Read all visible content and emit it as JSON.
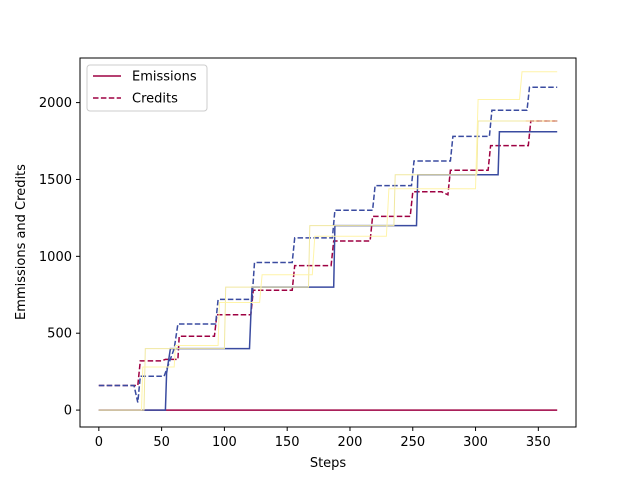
{
  "chart_data": {
    "type": "line",
    "xlabel": "Steps",
    "ylabel": "Emmissions and Credits",
    "xlim": [
      -15,
      380
    ],
    "ylim": [
      -110,
      2290
    ],
    "xticks": [
      0,
      50,
      100,
      150,
      200,
      250,
      300,
      350
    ],
    "yticks": [
      0,
      500,
      1000,
      1500,
      2000
    ],
    "grid": false,
    "legend_position": "top-left",
    "legend": [
      {
        "label": "Emissions",
        "style": "solid",
        "color": "#9e0142"
      },
      {
        "label": "Credits",
        "style": "dashed",
        "color": "#9e0142"
      }
    ],
    "series": [
      {
        "name": "Emissions",
        "color": "#9e0142",
        "style": "solid",
        "width": 1.5,
        "points": [
          [
            0,
            0
          ],
          [
            365,
            0
          ]
        ]
      },
      {
        "color": "#9e0142",
        "style": "dashed",
        "width": 1.5,
        "points": [
          [
            0,
            160
          ],
          [
            31,
            160
          ],
          [
            33,
            320
          ],
          [
            50,
            320
          ],
          [
            53,
            330
          ],
          [
            63,
            330
          ],
          [
            64,
            480
          ],
          [
            92,
            480
          ],
          [
            94,
            620
          ],
          [
            121,
            620
          ],
          [
            123,
            780
          ],
          [
            154,
            780
          ],
          [
            156,
            940
          ],
          [
            185,
            940
          ],
          [
            187,
            1100
          ],
          [
            216,
            1100
          ],
          [
            218,
            1260
          ],
          [
            248,
            1260
          ],
          [
            250,
            1420
          ],
          [
            273,
            1420
          ],
          [
            278,
            1400
          ],
          [
            280,
            1560
          ],
          [
            310,
            1560
          ],
          [
            312,
            1720
          ],
          [
            342,
            1720
          ],
          [
            344,
            1880
          ],
          [
            365,
            1880
          ]
        ]
      },
      {
        "color": "#3a4ba0",
        "style": "dashed",
        "width": 1.5,
        "points": [
          [
            0,
            160
          ],
          [
            28,
            160
          ],
          [
            31,
            50
          ],
          [
            33,
            220
          ],
          [
            52,
            220
          ],
          [
            60,
            400
          ],
          [
            63,
            560
          ],
          [
            93,
            560
          ],
          [
            95,
            720
          ],
          [
            122,
            720
          ],
          [
            124,
            960
          ],
          [
            154,
            960
          ],
          [
            156,
            1120
          ],
          [
            186,
            1120
          ],
          [
            188,
            1300
          ],
          [
            218,
            1300
          ],
          [
            220,
            1460
          ],
          [
            249,
            1460
          ],
          [
            251,
            1620
          ],
          [
            280,
            1620
          ],
          [
            282,
            1780
          ],
          [
            311,
            1780
          ],
          [
            313,
            1950
          ],
          [
            341,
            1950
          ],
          [
            343,
            2100
          ],
          [
            365,
            2100
          ]
        ]
      },
      {
        "color": "#3a4ba0",
        "style": "solid",
        "width": 1.5,
        "points": [
          [
            0,
            0
          ],
          [
            53,
            0
          ],
          [
            54,
            240
          ],
          [
            57,
            400
          ],
          [
            120,
            400
          ],
          [
            122,
            800
          ],
          [
            187,
            800
          ],
          [
            188,
            1200
          ],
          [
            253,
            1200
          ],
          [
            254,
            1530
          ],
          [
            318,
            1530
          ],
          [
            319,
            1810
          ],
          [
            365,
            1810
          ]
        ]
      },
      {
        "color": "#f1e8a0",
        "style": "solid",
        "width": 1.0,
        "points": [
          [
            0,
            0
          ],
          [
            36,
            0
          ],
          [
            37,
            400
          ],
          [
            100,
            400
          ],
          [
            101,
            800
          ],
          [
            167,
            800
          ],
          [
            168,
            1200
          ],
          [
            235,
            1200
          ],
          [
            236,
            1530
          ],
          [
            301,
            1530
          ],
          [
            302,
            1880
          ],
          [
            365,
            1880
          ]
        ]
      },
      {
        "color": "#fff4a8",
        "style": "solid",
        "width": 1.0,
        "points": [
          [
            0,
            0
          ],
          [
            34,
            0
          ],
          [
            35,
            280
          ],
          [
            60,
            280
          ],
          [
            61,
            420
          ],
          [
            95,
            420
          ],
          [
            96,
            700
          ],
          [
            128,
            700
          ],
          [
            130,
            880
          ],
          [
            170,
            880
          ],
          [
            172,
            1130
          ],
          [
            229,
            1130
          ],
          [
            231,
            1440
          ],
          [
            300,
            1440
          ],
          [
            302,
            2020
          ],
          [
            335,
            2020
          ],
          [
            337,
            2200
          ],
          [
            365,
            2200
          ]
        ]
      },
      {
        "color": "#f6c97a",
        "style": "dashed",
        "width": 1.0,
        "points": [
          [
            340,
            1880
          ],
          [
            365,
            1880
          ]
        ]
      }
    ]
  }
}
